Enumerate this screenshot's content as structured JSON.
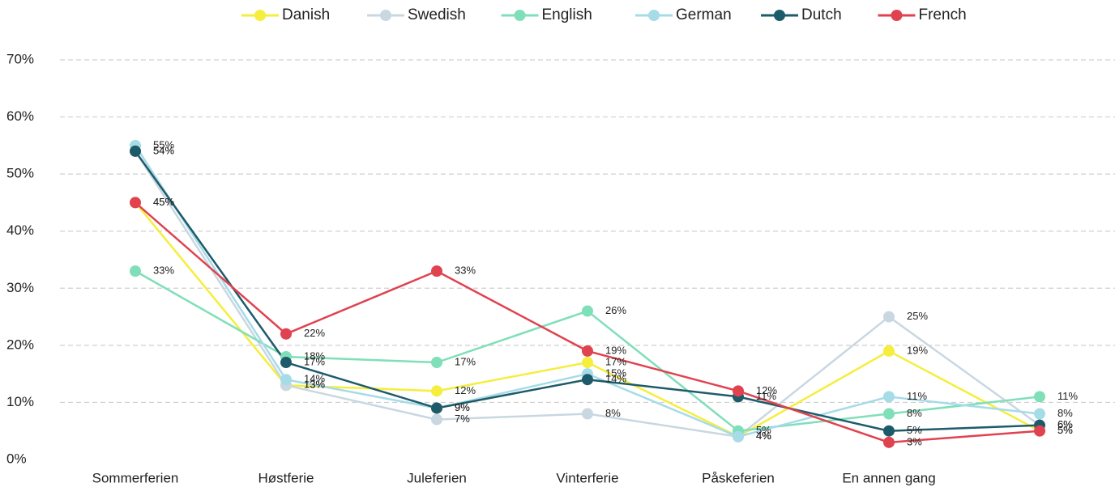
{
  "chart_data": {
    "type": "line",
    "categories": [
      "Sommerferien",
      "Høstferie",
      "Juleferien",
      "Vinterferie",
      "Påskeferien",
      "En annen gang",
      null
    ],
    "series": [
      {
        "name": "Danish",
        "color": "#f5ee3c",
        "values": [
          45,
          13,
          12,
          17,
          4,
          19,
          5
        ],
        "value_labels": [
          "45%",
          "13%",
          "12%",
          "17%",
          "4%",
          "19%",
          "5%"
        ]
      },
      {
        "name": "Swedish",
        "color": "#c9d7e1",
        "values": [
          54,
          13,
          7,
          8,
          4,
          25,
          6
        ],
        "value_labels": [
          "54%",
          "13%",
          "7%",
          "8%",
          "4%",
          "25%",
          "6%"
        ]
      },
      {
        "name": "English",
        "color": "#7fdfb9",
        "values": [
          33,
          18,
          17,
          26,
          5,
          8,
          11
        ],
        "value_labels": [
          "33%",
          "18%",
          "17%",
          "26%",
          "5%",
          "8%",
          "11%"
        ]
      },
      {
        "name": "German",
        "color": "#a6dbe8",
        "values": [
          55,
          14,
          9,
          15,
          4,
          11,
          8
        ],
        "value_labels": [
          "55%",
          "14%",
          "9%",
          "15%",
          "4%",
          "11%",
          "8%"
        ]
      },
      {
        "name": "Dutch",
        "color": "#1e5b6a",
        "values": [
          54,
          17,
          9,
          14,
          11,
          5,
          6
        ],
        "value_labels": [
          "54%",
          "17%",
          "9%",
          "14%",
          "11%",
          "5%",
          "6%"
        ]
      },
      {
        "name": "French",
        "color": "#e0424f",
        "values": [
          45,
          22,
          33,
          19,
          12,
          3,
          5
        ],
        "value_labels": [
          "45%",
          "22%",
          "33%",
          "19%",
          "12%",
          "3%",
          "5%"
        ]
      }
    ],
    "ylim": [
      0,
      70
    ],
    "yticks": [
      {
        "value": 0,
        "label": "0%"
      },
      {
        "value": 10,
        "label": "10%"
      },
      {
        "value": 20,
        "label": "20%"
      },
      {
        "value": 30,
        "label": "30%"
      },
      {
        "value": 40,
        "label": "40%"
      },
      {
        "value": 50,
        "label": "50%"
      },
      {
        "value": 60,
        "label": "60%"
      },
      {
        "value": 70,
        "label": "70%"
      }
    ],
    "grid": true,
    "legend": "top"
  }
}
